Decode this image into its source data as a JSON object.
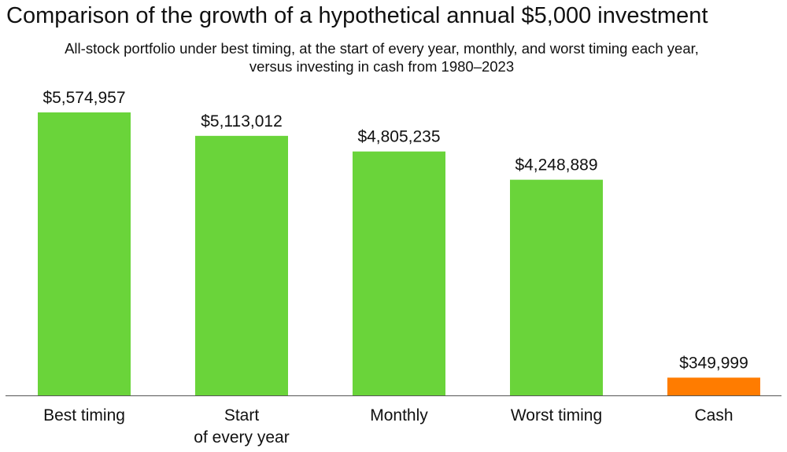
{
  "title": "Comparison of the growth of a hypothetical annual $5,000 investment",
  "subtitle": [
    "All-stock portfolio under best timing, at the start of every year, monthly, and worst timing each year,",
    "versus investing in cash from 1980–2023"
  ],
  "chart_data": {
    "type": "bar",
    "title": "Comparison of the growth of a hypothetical annual $5,000 investment",
    "categories": [
      [
        "Best timing"
      ],
      [
        "Start",
        "of every year"
      ],
      [
        "Monthly"
      ],
      [
        "Worst timing"
      ],
      [
        "Cash"
      ]
    ],
    "values": [
      5574957,
      5113012,
      4805235,
      4248889,
      349999
    ],
    "data_labels": [
      "$5,574,957",
      "$5,113,012",
      "$4,805,235",
      "$4,248,889",
      "$349,999"
    ],
    "colors": [
      "#6ad43a",
      "#6ad43a",
      "#6ad43a",
      "#6ad43a",
      "#ff7c00"
    ],
    "ylim": [
      0,
      5574957
    ],
    "grid": false,
    "legend": "none",
    "xlabel": "",
    "ylabel": ""
  }
}
